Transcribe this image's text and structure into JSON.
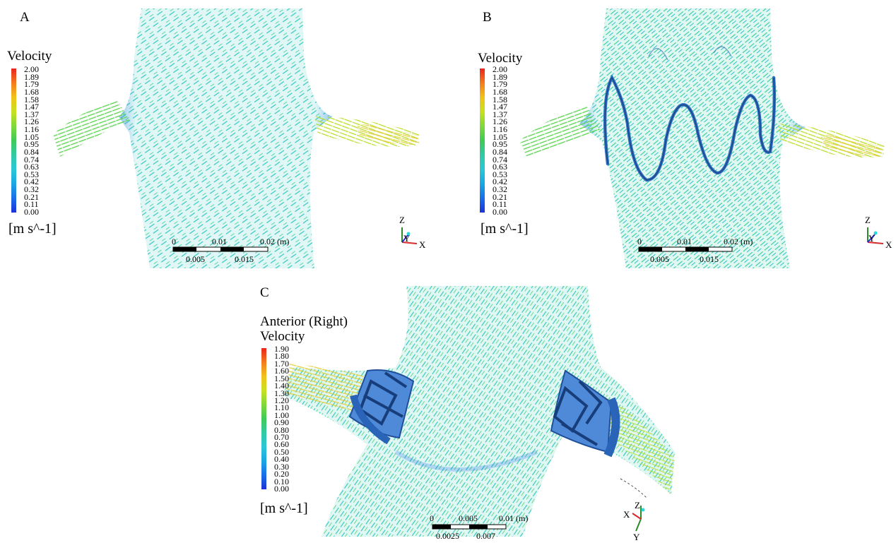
{
  "panels": {
    "a": {
      "letter": "A",
      "legend_title": "Velocity",
      "unit": "[m s^-1]",
      "ticks": [
        "2.00",
        "1.89",
        "1.79",
        "1.68",
        "1.58",
        "1.47",
        "1.37",
        "1.26",
        "1.16",
        "1.05",
        "0.95",
        "0.84",
        "0.74",
        "0.63",
        "0.53",
        "0.42",
        "0.32",
        "0.21",
        "0.11",
        "0.00"
      ],
      "scale": {
        "top": [
          "0",
          "0.01",
          "0.02 (m)"
        ],
        "bottom": [
          "0.005",
          "0.015"
        ]
      },
      "axes": {
        "vertical": "Z",
        "depth": "Y",
        "horizontal": "X"
      }
    },
    "b": {
      "letter": "B",
      "legend_title": "Velocity",
      "unit": "[m s^-1]",
      "ticks": [
        "2.00",
        "1.89",
        "1.79",
        "1.68",
        "1.58",
        "1.47",
        "1.37",
        "1.26",
        "1.16",
        "1.05",
        "0.95",
        "0.84",
        "0.74",
        "0.63",
        "0.53",
        "0.42",
        "0.32",
        "0.21",
        "0.11",
        "0.00"
      ],
      "scale": {
        "top": [
          "0",
          "0.01",
          "0.02 (m)"
        ],
        "bottom": [
          "0.005",
          "0.015"
        ]
      },
      "axes": {
        "vertical": "Z",
        "depth": "Y",
        "horizontal": "X"
      }
    },
    "c": {
      "letter": "C",
      "legend_subtitle": "Anterior (Right)",
      "legend_title": "Velocity",
      "unit": "[m s^-1]",
      "ticks": [
        "1.90",
        "1.80",
        "1.70",
        "1.60",
        "1.50",
        "1.40",
        "1.30",
        "1.20",
        "1.10",
        "1.00",
        "0.90",
        "0.80",
        "0.70",
        "0.60",
        "0.50",
        "0.40",
        "0.30",
        "0.20",
        "0.10",
        "0.00"
      ],
      "scale": {
        "top": [
          "0",
          "0.005",
          "0.01 (m)"
        ],
        "bottom": [
          "0.0025",
          "0.007"
        ]
      },
      "axes": {
        "vertical": "Z",
        "depth": "X",
        "horizontal": "Y"
      }
    }
  },
  "colors": {
    "vector_base": "#2fc8c8",
    "vector_high": "#e0d22a",
    "stent": "#2f6fc0"
  }
}
